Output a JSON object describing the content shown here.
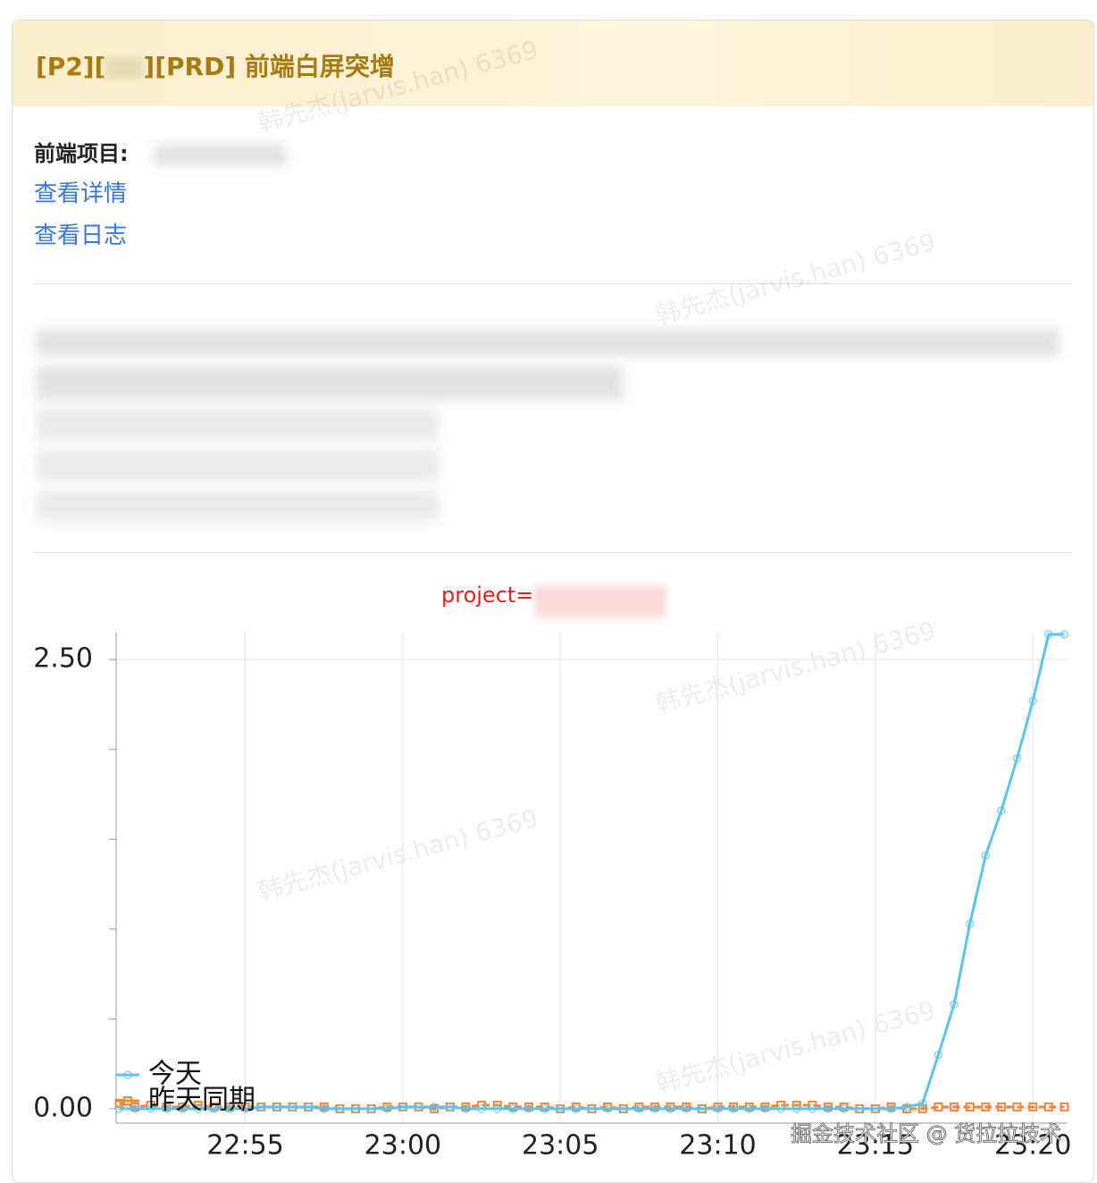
{
  "header": {
    "title_start": "[P2][",
    "title_end": "][PRD] 前端白屏突增"
  },
  "body": {
    "project_label": "前端项目:",
    "links": [
      "查看详情",
      "查看日志"
    ]
  },
  "watermark": "韩先杰(jarvis.han) 6369",
  "footer": "掘金技术社区 @ 货拉拉技术",
  "chart_data": {
    "type": "line",
    "title": "project=",
    "x": [
      1371,
      1371.5,
      1372,
      1372.5,
      1373,
      1373.5,
      1374,
      1374.5,
      1375,
      1375.5,
      1376,
      1376.5,
      1377,
      1377.5,
      1378,
      1378.5,
      1379,
      1379.5,
      1380,
      1380.5,
      1381,
      1381.5,
      1382,
      1382.5,
      1383,
      1383.5,
      1384,
      1384.5,
      1385,
      1385.5,
      1386,
      1386.5,
      1387,
      1387.5,
      1388,
      1388.5,
      1389,
      1389.5,
      1390,
      1390.5,
      1391,
      1391.5,
      1392,
      1392.5,
      1393,
      1393.5,
      1394,
      1394.5,
      1395,
      1395.5,
      1396,
      1396.5,
      1397,
      1397.5,
      1398,
      1398.5,
      1399,
      1399.5,
      1400,
      1400.5,
      1401
    ],
    "series": [
      {
        "name": "今天",
        "color": "#5bc4ee",
        "marker": "circle",
        "values": [
          0,
          0,
          0,
          0,
          0,
          0,
          0,
          0,
          0,
          0.01,
          0.01,
          0.01,
          0.01,
          0,
          0,
          0,
          0,
          0,
          0.01,
          0.01,
          0.01,
          0.01,
          0,
          0,
          0,
          0,
          0,
          0,
          0,
          0,
          0,
          0,
          0,
          0,
          0,
          0,
          0,
          0,
          0,
          0,
          0,
          0,
          0,
          0,
          0,
          0,
          0,
          0,
          0,
          0,
          0.01,
          0.03,
          0.3,
          0.58,
          1.03,
          1.41,
          1.66,
          1.95,
          2.27,
          2.64,
          2.64
        ]
      },
      {
        "name": "昨天同期",
        "color": "#f0873a",
        "marker": "square",
        "values": [
          0.03,
          0.01,
          0.02,
          0.01,
          0.01,
          0.02,
          0.01,
          0.01,
          0.01,
          0.01,
          0.01,
          0.01,
          0.01,
          0.01,
          0,
          0,
          0,
          0.01,
          0.01,
          0.01,
          0,
          0.01,
          0.01,
          0.02,
          0.02,
          0.01,
          0.01,
          0.01,
          0,
          0.01,
          0,
          0.01,
          0,
          0.01,
          0.01,
          0.01,
          0.01,
          0,
          0.01,
          0.01,
          0.01,
          0.01,
          0.02,
          0.02,
          0.02,
          0.01,
          0.01,
          0,
          0,
          0.01,
          0,
          0,
          0.01,
          0.01,
          0.01,
          0.01,
          0.01,
          0.01,
          0.01,
          0.01,
          0.01
        ]
      }
    ],
    "xlim": [
      1370.9,
      1401.1
    ],
    "ylim": [
      -0.08,
      2.65
    ],
    "xticks": [
      {
        "value": 1375,
        "label": "22:55"
      },
      {
        "value": 1380,
        "label": "23:00"
      },
      {
        "value": 1385,
        "label": "23:05"
      },
      {
        "value": 1390,
        "label": "23:10"
      },
      {
        "value": 1395,
        "label": "23:15"
      },
      {
        "value": 1400,
        "label": "23:20"
      }
    ],
    "yticks": [
      {
        "value": 0,
        "label": "0.00"
      },
      {
        "value": 2.5,
        "label": "2.50"
      }
    ],
    "yminorticks": [
      0.5,
      1,
      1.5,
      2
    ],
    "grid": true,
    "legend": "lower-left"
  }
}
